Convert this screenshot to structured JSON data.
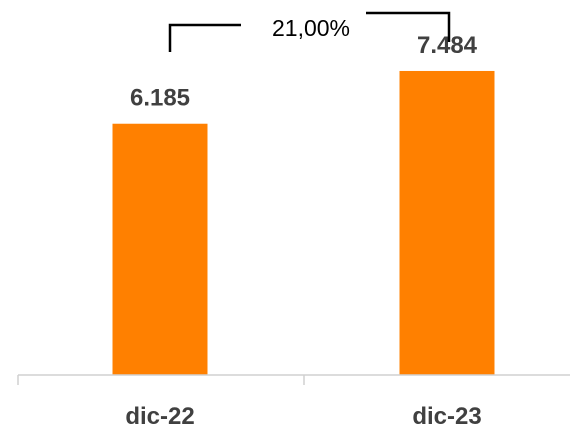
{
  "chart_data": {
    "type": "bar",
    "categories": [
      "dic-22",
      "dic-23"
    ],
    "values": [
      6185,
      7484
    ],
    "value_labels": [
      "6.185",
      "7.484"
    ],
    "bar_color": "#FF8000",
    "annotation": {
      "type": "growth-bracket",
      "text": "21,00%"
    },
    "title": "",
    "xlabel": "",
    "ylabel": "",
    "ylim": [
      0,
      8000
    ],
    "grid": false,
    "legend": "none"
  }
}
